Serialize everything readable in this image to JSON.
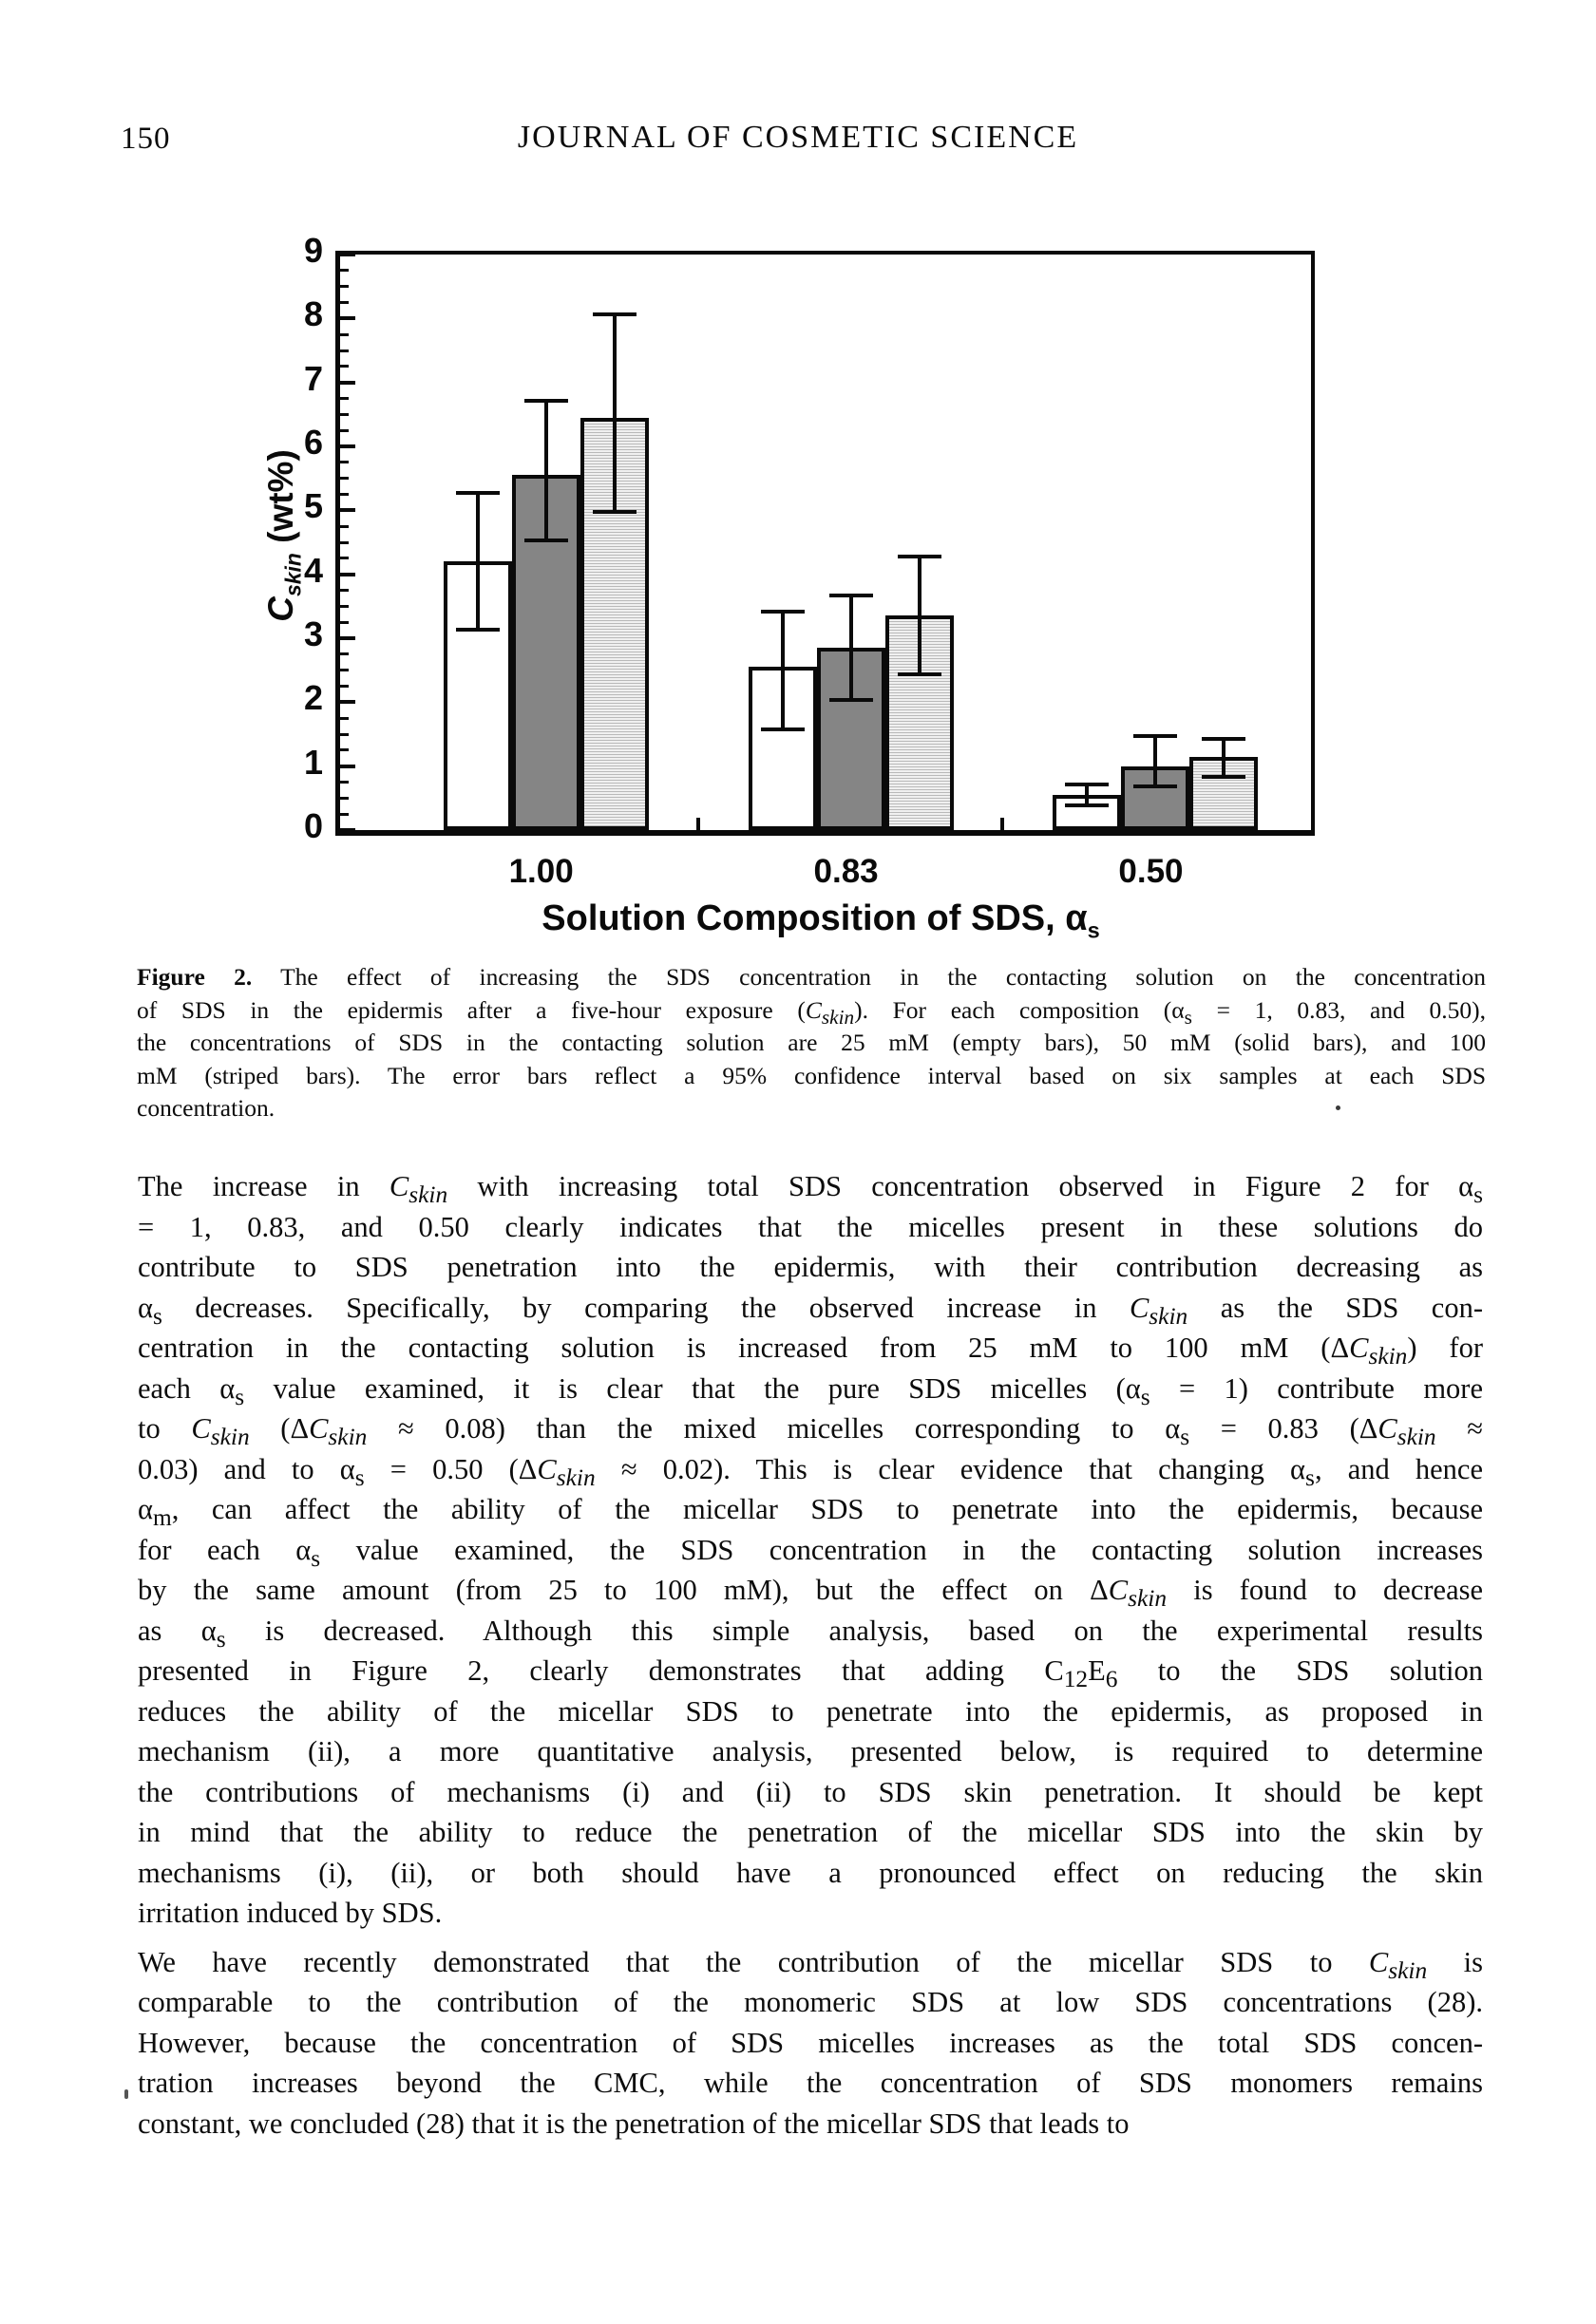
{
  "header": {
    "page_number": "150",
    "journal_title": "JOURNAL OF COSMETIC SCIENCE"
  },
  "chart_data": {
    "type": "bar",
    "title": "",
    "xlabel": "Solution Composition of SDS, {as}",
    "ylabel": "{Cskin} (wt%)",
    "ylim": [
      0,
      9
    ],
    "y_major_ticks": [
      0,
      1,
      2,
      3,
      4,
      5,
      6,
      7,
      8,
      9
    ],
    "y_minor_step": 0.25,
    "grid": false,
    "legend_position": "none",
    "categories": [
      "1.00",
      "0.83",
      "0.50"
    ],
    "group_centers_pct": [
      21.2,
      52.6,
      84.0
    ],
    "x_boundary_tick_pct": [
      36.9,
      68.2
    ],
    "series": [
      {
        "name": "25 mM (empty bars)",
        "style": "empty",
        "values": [
          4.2,
          2.55,
          0.55
        ],
        "err_low": [
          3.1,
          1.55,
          0.35
        ],
        "err_high": [
          5.3,
          3.45,
          0.75
        ]
      },
      {
        "name": "50 mM (solid bars)",
        "style": "solid",
        "values": [
          5.55,
          2.85,
          1.0
        ],
        "err_low": [
          4.5,
          2.0,
          0.65
        ],
        "err_high": [
          6.75,
          3.7,
          1.5
        ]
      },
      {
        "name": "100 mM (striped bars)",
        "style": "striped",
        "values": [
          6.45,
          3.35,
          1.15
        ],
        "err_low": [
          4.95,
          2.4,
          0.8
        ],
        "err_high": [
          8.1,
          4.3,
          1.45
        ]
      }
    ]
  },
  "caption": {
    "lines": [
      "{b}Figure 2.{/b} The effect of increasing the SDS concentration in the contacting solution on the concentration",
      "of SDS in the epidermis after a five-hour exposure ({Cskin}). For each composition ({as} = 1, 0.83, and 0.50),",
      "the concentrations of SDS in the contacting solution are 25 mM (empty bars), 50 mM (solid bars), and 100",
      "mM (striped bars). The error bars reflect a 95% confidence interval based on six samples at each SDS",
      "concentration."
    ]
  },
  "body": {
    "paragraphs": [
      {
        "lines": [
          "The increase in {Cskin} with increasing total SDS concentration observed in Figure 2 for {as}",
          "= 1, 0.83, and 0.50 clearly indicates that the micelles present in these solutions do",
          "contribute to SDS penetration into the epidermis, with their contribution decreasing as",
          "{as} decreases. Specifically, by comparing the observed increase in {Cskin} as the SDS con-",
          "centration in the contacting solution is increased from 25 mM to 100 mM ({DCskin}) for",
          "each {as} value examined, it is clear that the pure SDS micelles ({as} = 1) contribute more",
          "to {Cskin} ({DCskin} ≈ 0.08) than the mixed micelles corresponding to {as} = 0.83 ({DCskin} ≈",
          "0.03) and to {as} = 0.50 ({DCskin} ≈ 0.02). This is clear evidence that changing {as}, and hence",
          "{am}, can affect the ability of the micellar SDS to penetrate into the epidermis, because",
          "for each {as} value examined, the SDS concentration in the contacting solution increases",
          "by the same amount (from 25 to 100 mM), but the effect on {DCskin} is found to decrease",
          "as {as} is decreased. Although this simple analysis, based on the experimental results",
          "presented in Figure 2, clearly demonstrates that adding {C12E6} to the SDS solution",
          "reduces the ability of the micellar SDS to penetrate into the epidermis, as proposed in",
          "mechanism (ii), a more quantitative analysis, presented below, is required to determine",
          "the contributions of mechanisms (i) and (ii) to SDS skin penetration. It should be kept",
          "in mind that the ability to reduce the penetration of the micellar SDS into the skin by",
          "mechanisms (i), (ii), or both should have a pronounced effect on reducing the skin",
          "irritation induced by SDS."
        ]
      },
      {
        "lines": [
          "We have recently demonstrated that the contribution of the micellar SDS to {Cskin} is",
          "comparable to the contribution of the monomeric SDS at low SDS concentrations (28).",
          "However, because the concentration of SDS micelles increases as the total SDS concen-",
          "tration increases beyond the CMC, while the concentration of SDS monomers remains",
          "constant, we concluded (28) that it is the penetration of the micellar SDS that leads to"
        ]
      }
    ]
  },
  "colors": {
    "ink": "#0a0a0a",
    "solid_bar": "#858585",
    "stripe_light": "#f0f0f0",
    "stripe_dark": "#b9b9b9",
    "background": "#ffffff"
  }
}
